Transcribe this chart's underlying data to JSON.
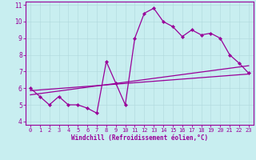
{
  "xlabel": "Windchill (Refroidissement éolien,°C)",
  "bg_color": "#c8eef0",
  "line_color": "#990099",
  "xlim": [
    -0.5,
    23.5
  ],
  "ylim": [
    3.8,
    11.2
  ],
  "yticks": [
    4,
    5,
    6,
    7,
    8,
    9,
    10,
    11
  ],
  "xticks": [
    0,
    1,
    2,
    3,
    4,
    5,
    6,
    7,
    8,
    9,
    10,
    11,
    12,
    13,
    14,
    15,
    16,
    17,
    18,
    19,
    20,
    21,
    22,
    23
  ],
  "main_y": [
    6.0,
    5.5,
    5.0,
    5.5,
    5.0,
    5.0,
    4.8,
    4.5,
    7.6,
    6.3,
    5.0,
    9.0,
    10.5,
    10.8,
    10.0,
    9.7,
    9.1,
    9.5,
    9.2,
    9.3,
    9.0,
    8.0,
    7.5,
    6.9
  ],
  "trend1_y_start": 5.85,
  "trend1_y_end": 6.85,
  "trend2_y_start": 5.6,
  "trend2_y_end": 7.35,
  "grid_color": "#b0d8dc",
  "xlabel_fontsize": 5.5,
  "tick_fontsize": 5.0,
  "linewidth": 0.9,
  "markersize": 2.2
}
